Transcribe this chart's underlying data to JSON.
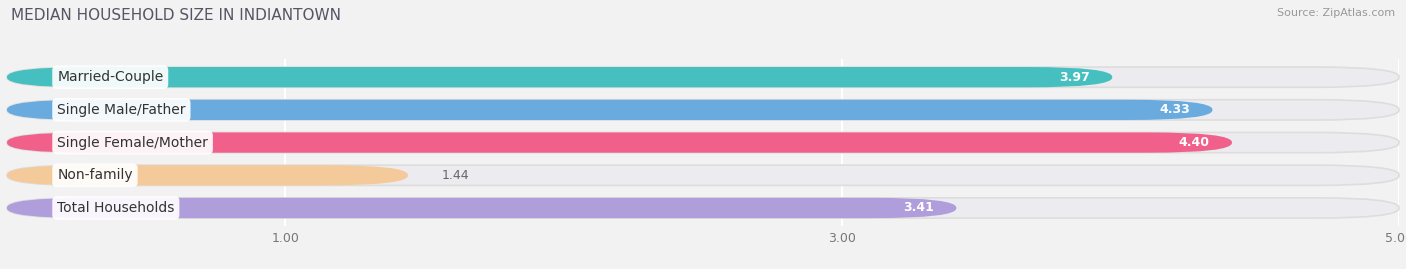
{
  "title": "MEDIAN HOUSEHOLD SIZE IN INDIANTOWN",
  "source": "Source: ZipAtlas.com",
  "categories": [
    "Married-Couple",
    "Single Male/Father",
    "Single Female/Mother",
    "Non-family",
    "Total Households"
  ],
  "values": [
    3.97,
    4.33,
    4.4,
    1.44,
    3.41
  ],
  "bar_colors": [
    "#45bfbf",
    "#6aabdf",
    "#f0608a",
    "#f5ca9a",
    "#b09ddb"
  ],
  "background_color_bars": "#e8e8ee",
  "xlim_data": [
    0,
    5.0
  ],
  "xlim_display": [
    0,
    5.0
  ],
  "xticks": [
    1.0,
    3.0,
    5.0
  ],
  "title_fontsize": 11,
  "label_fontsize": 10,
  "value_fontsize": 9,
  "bar_height": 0.62,
  "bg_color": "#ffffff",
  "fig_bg_color": "#f2f2f2",
  "gap_color": "#ffffff"
}
